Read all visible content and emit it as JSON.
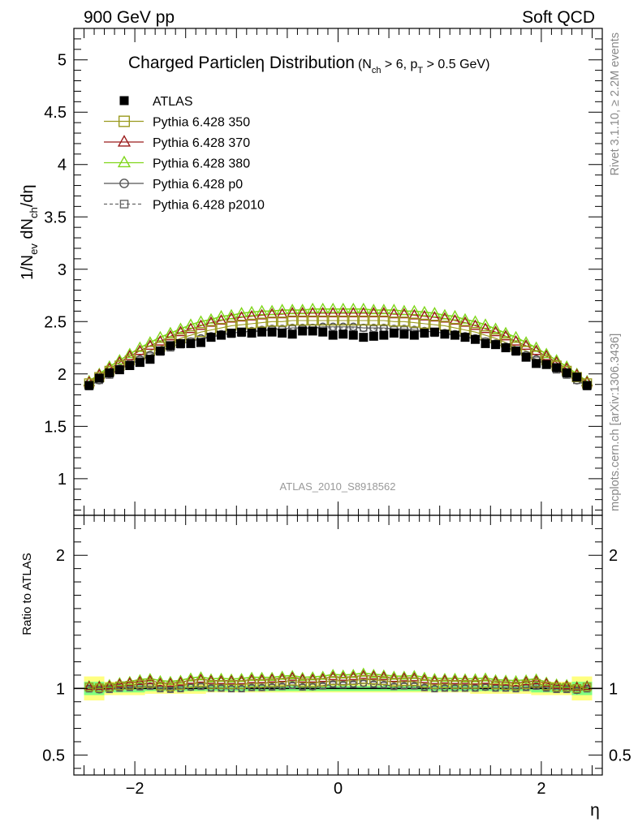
{
  "header": {
    "left": "900 GeV pp",
    "right": "Soft QCD"
  },
  "side": {
    "rivet": "Rivet 3.1.10, ≥ 2.2M events",
    "mcplots": "mcplots.cern.ch [arXiv:1306.3436]"
  },
  "title": {
    "main": "Charged Particleη Distribution",
    "cut": "(N",
    "cut_sub1": "ch",
    "cut_mid": " > 6, p",
    "cut_sub2": "T",
    "cut_end": " > 0.5 GeV)"
  },
  "watermark": "ATLAS_2010_S8918562",
  "ylabel_main": {
    "a": "1/N",
    "a_sub": "ev",
    "b": " dN",
    "b_sub": "ch",
    "c": "/dη"
  },
  "ylabel_ratio": "Ratio to ATLAS",
  "xlabel": "η",
  "colors": {
    "ATLAS": "#000000",
    "p350": "#9a9a1e",
    "p370": "#9b1b1b",
    "p380": "#7fd61a",
    "p0": "#555555",
    "p2010": "#666666",
    "band_yellow": "#ffff80",
    "band_green": "#80ff80"
  },
  "chart_data": [
    {
      "type": "scatter",
      "panel": "main",
      "xlim": [
        -2.6,
        2.6
      ],
      "ylim": [
        0.65,
        5.3
      ],
      "yticks": [
        1,
        1.5,
        2,
        2.5,
        3,
        3.5,
        4,
        4.5,
        5
      ],
      "ytick_labels": [
        "1",
        "1.5",
        "2",
        "2.5",
        "3",
        "3.5",
        "4",
        "4.5",
        "5"
      ],
      "x": [
        -2.45,
        -2.35,
        -2.25,
        -2.15,
        -2.05,
        -1.95,
        -1.85,
        -1.75,
        -1.65,
        -1.55,
        -1.45,
        -1.35,
        -1.25,
        -1.15,
        -1.05,
        -0.95,
        -0.85,
        -0.75,
        -0.65,
        -0.55,
        -0.45,
        -0.35,
        -0.25,
        -0.15,
        -0.05,
        0.05,
        0.15,
        0.25,
        0.35,
        0.45,
        0.55,
        0.65,
        0.75,
        0.85,
        0.95,
        1.05,
        1.15,
        1.25,
        1.35,
        1.45,
        1.55,
        1.65,
        1.75,
        1.85,
        1.95,
        2.05,
        2.15,
        2.25,
        2.35,
        2.45
      ],
      "series": [
        {
          "name": "ATLAS",
          "marker": "filled-square",
          "values": [
            1.89,
            1.96,
            2.01,
            2.04,
            2.08,
            2.11,
            2.14,
            2.22,
            2.27,
            2.29,
            2.29,
            2.3,
            2.35,
            2.37,
            2.39,
            2.4,
            2.39,
            2.4,
            2.4,
            2.39,
            2.38,
            2.41,
            2.41,
            2.4,
            2.37,
            2.38,
            2.37,
            2.35,
            2.36,
            2.37,
            2.39,
            2.38,
            2.37,
            2.39,
            2.4,
            2.38,
            2.37,
            2.35,
            2.33,
            2.29,
            2.28,
            2.25,
            2.22,
            2.16,
            2.1,
            2.09,
            2.06,
            2.01,
            1.97,
            1.89
          ]
        },
        {
          "name": "Pythia 6.428 350",
          "marker": "open-square",
          "line": "solid",
          "values": [
            1.91,
            1.97,
            2.03,
            2.08,
            2.13,
            2.18,
            2.22,
            2.26,
            2.3,
            2.34,
            2.37,
            2.4,
            2.42,
            2.44,
            2.46,
            2.47,
            2.48,
            2.49,
            2.5,
            2.5,
            2.51,
            2.51,
            2.51,
            2.51,
            2.51,
            2.51,
            2.51,
            2.51,
            2.51,
            2.51,
            2.5,
            2.5,
            2.49,
            2.48,
            2.47,
            2.46,
            2.44,
            2.42,
            2.4,
            2.37,
            2.34,
            2.3,
            2.26,
            2.22,
            2.18,
            2.13,
            2.08,
            2.03,
            1.97,
            1.91
          ]
        },
        {
          "name": "Pythia 6.428 370",
          "marker": "open-triangle",
          "line": "solid",
          "values": [
            1.92,
            1.99,
            2.05,
            2.11,
            2.17,
            2.22,
            2.27,
            2.31,
            2.36,
            2.4,
            2.43,
            2.46,
            2.49,
            2.51,
            2.53,
            2.54,
            2.55,
            2.56,
            2.57,
            2.57,
            2.58,
            2.58,
            2.58,
            2.58,
            2.58,
            2.58,
            2.58,
            2.58,
            2.58,
            2.58,
            2.57,
            2.57,
            2.56,
            2.55,
            2.54,
            2.53,
            2.51,
            2.49,
            2.46,
            2.43,
            2.4,
            2.36,
            2.31,
            2.27,
            2.22,
            2.17,
            2.11,
            2.05,
            1.99,
            1.92
          ]
        },
        {
          "name": "Pythia 6.428 380",
          "marker": "open-triangle",
          "line": "solid",
          "values": [
            1.93,
            2.0,
            2.07,
            2.13,
            2.19,
            2.25,
            2.3,
            2.35,
            2.39,
            2.43,
            2.47,
            2.5,
            2.52,
            2.55,
            2.56,
            2.58,
            2.59,
            2.6,
            2.6,
            2.61,
            2.61,
            2.61,
            2.62,
            2.62,
            2.62,
            2.62,
            2.62,
            2.62,
            2.61,
            2.61,
            2.61,
            2.6,
            2.6,
            2.59,
            2.58,
            2.56,
            2.55,
            2.52,
            2.5,
            2.47,
            2.43,
            2.39,
            2.35,
            2.3,
            2.25,
            2.19,
            2.13,
            2.07,
            2.0,
            1.93
          ]
        },
        {
          "name": "Pythia 6.428 p0",
          "marker": "open-circle",
          "line": "solid",
          "values": [
            1.89,
            1.94,
            2.0,
            2.05,
            2.1,
            2.14,
            2.18,
            2.22,
            2.26,
            2.29,
            2.31,
            2.34,
            2.36,
            2.38,
            2.39,
            2.4,
            2.41,
            2.42,
            2.43,
            2.43,
            2.44,
            2.44,
            2.44,
            2.45,
            2.45,
            2.45,
            2.45,
            2.44,
            2.44,
            2.44,
            2.43,
            2.43,
            2.42,
            2.41,
            2.4,
            2.39,
            2.38,
            2.36,
            2.34,
            2.31,
            2.29,
            2.26,
            2.22,
            2.18,
            2.14,
            2.1,
            2.05,
            2.0,
            1.94,
            1.89
          ]
        },
        {
          "name": "Pythia 6.428 p2010",
          "marker": "open-square-small",
          "line": "dashed",
          "values": [
            1.88,
            1.94,
            1.99,
            2.04,
            2.09,
            2.13,
            2.17,
            2.21,
            2.25,
            2.28,
            2.31,
            2.33,
            2.35,
            2.37,
            2.38,
            2.39,
            2.4,
            2.41,
            2.42,
            2.42,
            2.43,
            2.43,
            2.44,
            2.44,
            2.44,
            2.44,
            2.44,
            2.44,
            2.43,
            2.43,
            2.42,
            2.42,
            2.41,
            2.4,
            2.39,
            2.38,
            2.37,
            2.35,
            2.33,
            2.31,
            2.28,
            2.25,
            2.21,
            2.17,
            2.13,
            2.09,
            2.04,
            1.99,
            1.94,
            1.88
          ]
        }
      ]
    },
    {
      "type": "scatter",
      "panel": "ratio",
      "xlim": [
        -2.6,
        2.6
      ],
      "ylim": [
        0.35,
        2.3
      ],
      "yticks": [
        0.5,
        1,
        2
      ],
      "ytick_labels": [
        "0.5",
        "1",
        "2"
      ],
      "xticks": [
        -2,
        0,
        2
      ],
      "xtick_labels": [
        "−2",
        "0",
        "2"
      ],
      "band_x_edges": [
        -2.5,
        -2.3,
        -1.9,
        -1.7,
        -1.3,
        1.3,
        1.7,
        1.9,
        2.3,
        2.5
      ],
      "band_yellow_halfwidth": [
        0.09,
        0.05,
        0.04,
        0.04,
        0.03,
        0.04,
        0.04,
        0.05,
        0.09
      ],
      "band_green_halfwidth": [
        0.05,
        0.03,
        0.02,
        0.02,
        0.02,
        0.02,
        0.02,
        0.03,
        0.05
      ]
    }
  ]
}
